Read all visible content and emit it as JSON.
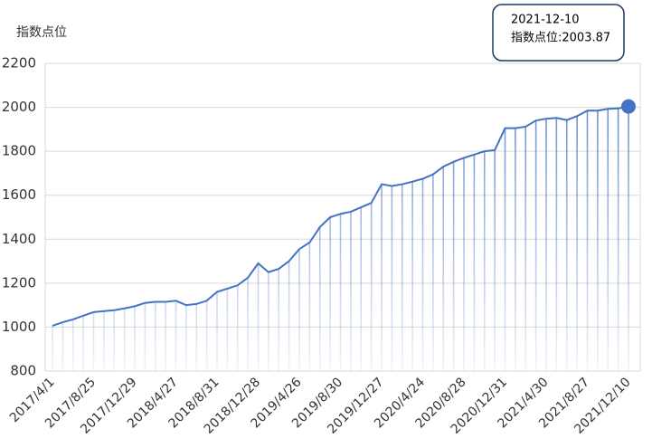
{
  "chart_data": {
    "type": "line",
    "y_label": "指数点位",
    "categories": [
      "2017/4/1",
      null,
      null,
      null,
      "2017/8/25",
      null,
      null,
      null,
      "2017/12/29",
      null,
      null,
      null,
      "2018/4/27",
      null,
      null,
      null,
      "2018/8/31",
      null,
      null,
      null,
      "2018/12/28",
      null,
      null,
      null,
      "2019/4/26",
      null,
      null,
      null,
      "2019/8/30",
      null,
      null,
      null,
      "2019/12/27",
      null,
      null,
      null,
      "2020/4/24",
      null,
      null,
      null,
      "2020/8/28",
      null,
      null,
      null,
      "2020/12/31",
      null,
      null,
      null,
      "2021/4/30",
      null,
      null,
      null,
      "2021/8/27",
      null,
      null,
      null,
      "2021/12/10"
    ],
    "values": [
      1006,
      1022,
      1035,
      1052,
      1068,
      1073,
      1077,
      1085,
      1095,
      1110,
      1115,
      1115,
      1120,
      1100,
      1105,
      1120,
      1160,
      1175,
      1190,
      1225,
      1290,
      1250,
      1265,
      1300,
      1355,
      1385,
      1455,
      1500,
      1515,
      1525,
      1545,
      1565,
      1650,
      1642,
      1650,
      1662,
      1675,
      1695,
      1730,
      1752,
      1770,
      1785,
      1800,
      1805,
      1905,
      1905,
      1912,
      1940,
      1948,
      1952,
      1942,
      1960,
      1985,
      1985,
      1993,
      1995,
      2003.87
    ],
    "color": "#4472c4",
    "ylim": [
      800,
      2200
    ],
    "yticks": [
      800,
      1000,
      1200,
      1400,
      1600,
      1800,
      2000,
      2200
    ],
    "grid": true,
    "tooltip": {
      "title": "2021-12-10",
      "label": "指数点位:2003.87"
    }
  }
}
